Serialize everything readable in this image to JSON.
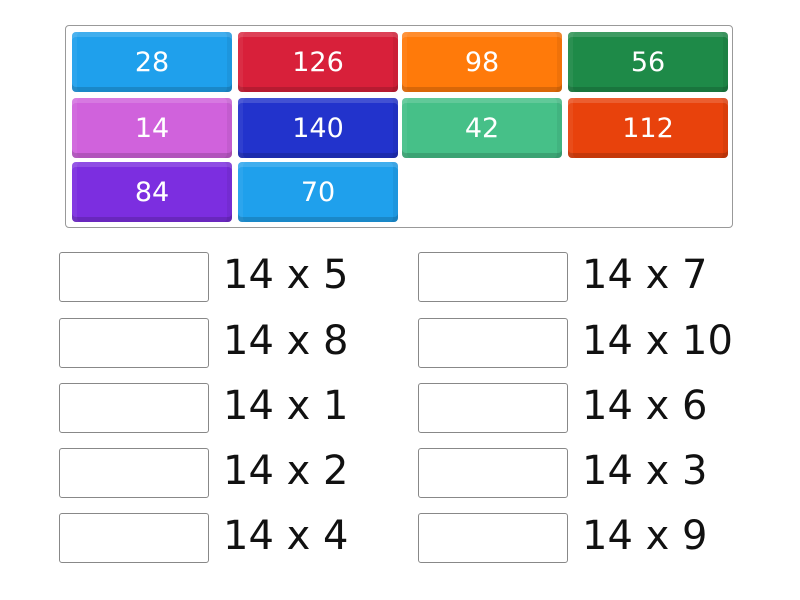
{
  "tiles": [
    {
      "label": "28",
      "color": "#1fa0ec"
    },
    {
      "label": "126",
      "color": "#d8203a"
    },
    {
      "label": "98",
      "color": "#ff7a0a"
    },
    {
      "label": "56",
      "color": "#1e8a48"
    },
    {
      "label": "14",
      "color": "#d062dc"
    },
    {
      "label": "140",
      "color": "#2233cc"
    },
    {
      "label": "42",
      "color": "#46c088"
    },
    {
      "label": "112",
      "color": "#e8420c"
    },
    {
      "label": "84",
      "color": "#7c2ee0"
    },
    {
      "label": "70",
      "color": "#1fa0ec"
    }
  ],
  "questions": [
    {
      "label": "14 x 5",
      "answer": ""
    },
    {
      "label": "14 x 7",
      "answer": ""
    },
    {
      "label": "14 x 8",
      "answer": ""
    },
    {
      "label": "14 x 10",
      "answer": ""
    },
    {
      "label": "14 x 1",
      "answer": ""
    },
    {
      "label": "14 x 6",
      "answer": ""
    },
    {
      "label": "14 x 2",
      "answer": ""
    },
    {
      "label": "14 x 3",
      "answer": ""
    },
    {
      "label": "14 x 4",
      "answer": ""
    },
    {
      "label": "14 x 9",
      "answer": ""
    }
  ]
}
